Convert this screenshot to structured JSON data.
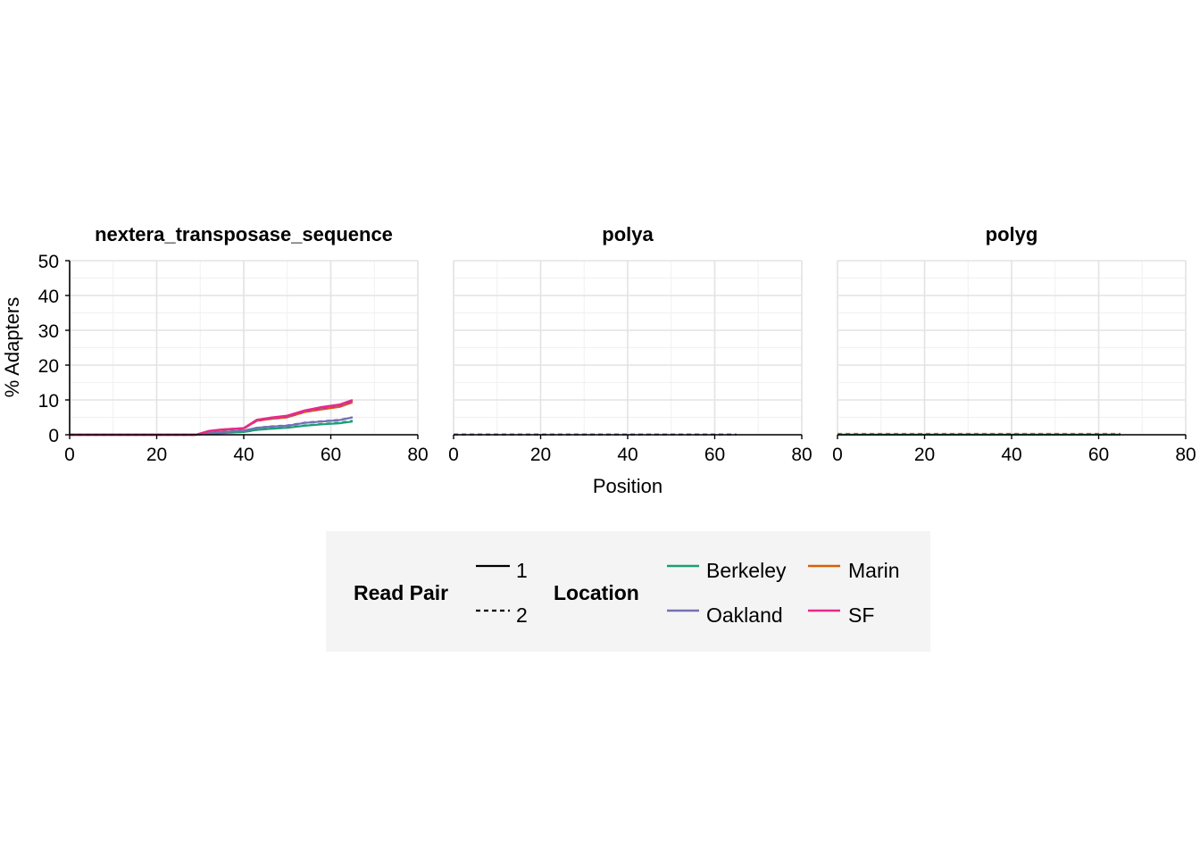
{
  "chart_data": {
    "type": "line",
    "xlabel": "Position",
    "ylabel": "% Adapters",
    "xlim": [
      0,
      80
    ],
    "ylim": [
      0,
      50
    ],
    "xticks": [
      0,
      20,
      40,
      60,
      80
    ],
    "yticks": [
      0,
      10,
      20,
      30,
      40,
      50
    ],
    "grid": true,
    "legend_placement": "bottom",
    "colors": {
      "Berkeley": "#1b9e77",
      "Marin": "#d95f02",
      "Oakland": "#7570b3",
      "SF": "#e7298a"
    },
    "legend": {
      "read_pair_title": "Read Pair",
      "read_pairs": [
        "1",
        "2"
      ],
      "location_title": "Location",
      "locations": [
        "Berkeley",
        "Marin",
        "Oakland",
        "SF"
      ]
    },
    "x": [
      0,
      5,
      10,
      15,
      20,
      25,
      29,
      32,
      35,
      40,
      43,
      46,
      50,
      54,
      58,
      62,
      65
    ],
    "panels": [
      {
        "title": "nextera_transposase_sequence",
        "series": [
          {
            "location": "Berkeley",
            "read_pair": "1",
            "values": [
              0,
              0,
              0,
              0,
              0,
              0,
              0,
              0.3,
              0.5,
              0.8,
              1.4,
              1.7,
              2.0,
              2.6,
              3.0,
              3.3,
              3.8
            ]
          },
          {
            "location": "Berkeley",
            "read_pair": "2",
            "values": [
              0,
              0,
              0,
              0,
              0,
              0,
              0,
              0.3,
              0.5,
              0.8,
              1.4,
              1.8,
              2.1,
              2.7,
              3.1,
              3.5,
              4.0
            ]
          },
          {
            "location": "Oakland",
            "read_pair": "1",
            "values": [
              0,
              0,
              0,
              0,
              0,
              0,
              0,
              0.5,
              0.8,
              1.2,
              2.0,
              2.3,
              2.6,
              3.4,
              3.8,
              4.2,
              5.0
            ]
          },
          {
            "location": "Oakland",
            "read_pair": "2",
            "values": [
              0,
              0,
              0,
              0,
              0,
              0,
              0,
              0.5,
              0.8,
              1.2,
              2.0,
              2.4,
              2.7,
              3.5,
              3.9,
              4.3,
              5.0
            ]
          },
          {
            "location": "Marin",
            "read_pair": "1",
            "values": [
              0,
              0,
              0,
              0,
              0,
              0,
              0,
              1.0,
              1.4,
              1.8,
              4.0,
              4.5,
              5.0,
              6.5,
              7.3,
              8.0,
              9.3
            ]
          },
          {
            "location": "Marin",
            "read_pair": "2",
            "values": [
              0,
              0,
              0,
              0,
              0,
              0,
              0,
              1.0,
              1.4,
              1.8,
              4.1,
              4.6,
              5.1,
              6.6,
              7.4,
              8.1,
              9.4
            ]
          },
          {
            "location": "Oakland",
            "read_pair": "1",
            "values": [
              0,
              0,
              0,
              0,
              0,
              0,
              0,
              1.1,
              1.5,
              1.9,
              4.2,
              4.8,
              5.3,
              6.9,
              7.8,
              8.5,
              9.8
            ]
          },
          {
            "location": "SF",
            "read_pair": "1",
            "values": [
              0,
              0,
              0,
              0,
              0,
              0,
              0,
              1.1,
              1.5,
              1.9,
              4.3,
              4.9,
              5.5,
              7.0,
              8.0,
              8.7,
              10.0
            ]
          },
          {
            "location": "SF",
            "read_pair": "2",
            "values": [
              0,
              0,
              0,
              0,
              0,
              0,
              0,
              1.0,
              1.4,
              1.8,
              4.0,
              4.6,
              5.1,
              6.6,
              7.5,
              8.2,
              9.5
            ]
          }
        ]
      },
      {
        "title": "polya",
        "series": [
          {
            "location": "Berkeley",
            "read_pair": "2",
            "values": [
              0.05,
              0.05,
              0.05,
              0.05,
              0.05,
              0.05,
              0.05,
              0.05,
              0.05,
              0.05,
              0.05,
              0.05,
              0.05,
              0.05,
              0.05,
              0.05,
              0.05
            ]
          },
          {
            "location": "Oakland",
            "read_pair": "2",
            "values": [
              0.1,
              0.1,
              0.1,
              0.1,
              0.1,
              0.1,
              0.1,
              0.1,
              0.1,
              0.1,
              0.1,
              0.1,
              0.1,
              0.1,
              0.1,
              0.1,
              0.1
            ]
          }
        ]
      },
      {
        "title": "polyg",
        "series": [
          {
            "location": "Marin",
            "read_pair": "2",
            "values": [
              0.25,
              0.25,
              0.25,
              0.25,
              0.25,
              0.25,
              0.25,
              0.25,
              0.25,
              0.25,
              0.25,
              0.25,
              0.25,
              0.25,
              0.25,
              0.25,
              0.25
            ]
          },
          {
            "location": "Oakland",
            "read_pair": "2",
            "values": [
              0.15,
              0.15,
              0.15,
              0.15,
              0.15,
              0.15,
              0.15,
              0.15,
              0.15,
              0.15,
              0.15,
              0.15,
              0.15,
              0.15,
              0.15,
              0.15,
              0.15
            ]
          },
          {
            "location": "Berkeley",
            "read_pair": "1",
            "values": [
              0.02,
              0.02,
              0.02,
              0.02,
              0.02,
              0.02,
              0.02,
              0.02,
              0.02,
              0.02,
              0.02,
              0.02,
              0.02,
              0.02,
              0.02,
              0.02,
              0.02
            ]
          }
        ]
      }
    ]
  }
}
